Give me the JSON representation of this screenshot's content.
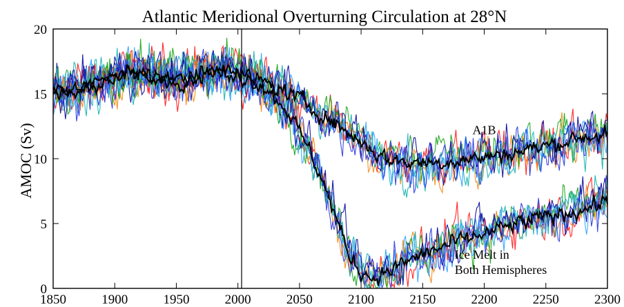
{
  "chart_data": {
    "type": "line",
    "title": "Atlantic Meridional Overturning Circulation at 28°N",
    "xlabel": "",
    "ylabel": "AMOC (Sv)",
    "xlim": [
      1850,
      2300
    ],
    "ylim": [
      0,
      20
    ],
    "xticks": [
      1850,
      1900,
      1950,
      2000,
      2050,
      2100,
      2150,
      2200,
      2250,
      2300
    ],
    "yticks": [
      0,
      5,
      10,
      15,
      20
    ],
    "grid": false,
    "reference_line_x": 2003,
    "annotations": [
      {
        "lines": [
          "A1B"
        ],
        "x": 2200,
        "y": 11.9
      },
      {
        "lines": [
          "Ice Melt in",
          "Both Hemispheres"
        ],
        "x": 2176,
        "y": 2.3
      }
    ],
    "ensemble_colors": [
      "#ff2020",
      "#f28c1e",
      "#1fa81f",
      "#20b4b4",
      "#35a7ff",
      "#2f3fe0",
      "#1010a0"
    ],
    "mean_color": "#000000",
    "series": [
      {
        "role": "ensemble-mean",
        "label": "A1B",
        "x": [
          1850,
          1870,
          1890,
          1910,
          1930,
          1950,
          1970,
          1980,
          1990,
          2000,
          2020,
          2040,
          2060,
          2080,
          2100,
          2110,
          2120,
          2140,
          2160,
          2180,
          2200,
          2220,
          2240,
          2260,
          2280,
          2300
        ],
        "y": [
          15.0,
          15.3,
          16.0,
          16.6,
          16.4,
          16.0,
          16.5,
          16.8,
          16.8,
          16.5,
          15.9,
          15.1,
          14.0,
          12.6,
          11.3,
          10.6,
          10.0,
          9.7,
          9.7,
          9.9,
          10.1,
          10.4,
          10.8,
          11.2,
          11.7,
          11.9
        ]
      },
      {
        "role": "ensemble-mean",
        "label": "Ice Melt in Both Hemispheres",
        "x": [
          1850,
          1870,
          1890,
          1910,
          1930,
          1950,
          1970,
          1980,
          1990,
          2000,
          2020,
          2040,
          2060,
          2070,
          2080,
          2090,
          2100,
          2110,
          2120,
          2140,
          2160,
          2180,
          2200,
          2220,
          2240,
          2260,
          2280,
          2300
        ],
        "y": [
          15.0,
          15.3,
          16.0,
          16.6,
          16.4,
          16.0,
          16.5,
          16.8,
          16.8,
          16.5,
          15.7,
          13.8,
          10.3,
          8.0,
          5.3,
          2.6,
          1.3,
          0.8,
          1.2,
          2.2,
          3.0,
          3.6,
          4.2,
          4.8,
          5.3,
          5.7,
          6.1,
          6.7
        ]
      }
    ]
  }
}
